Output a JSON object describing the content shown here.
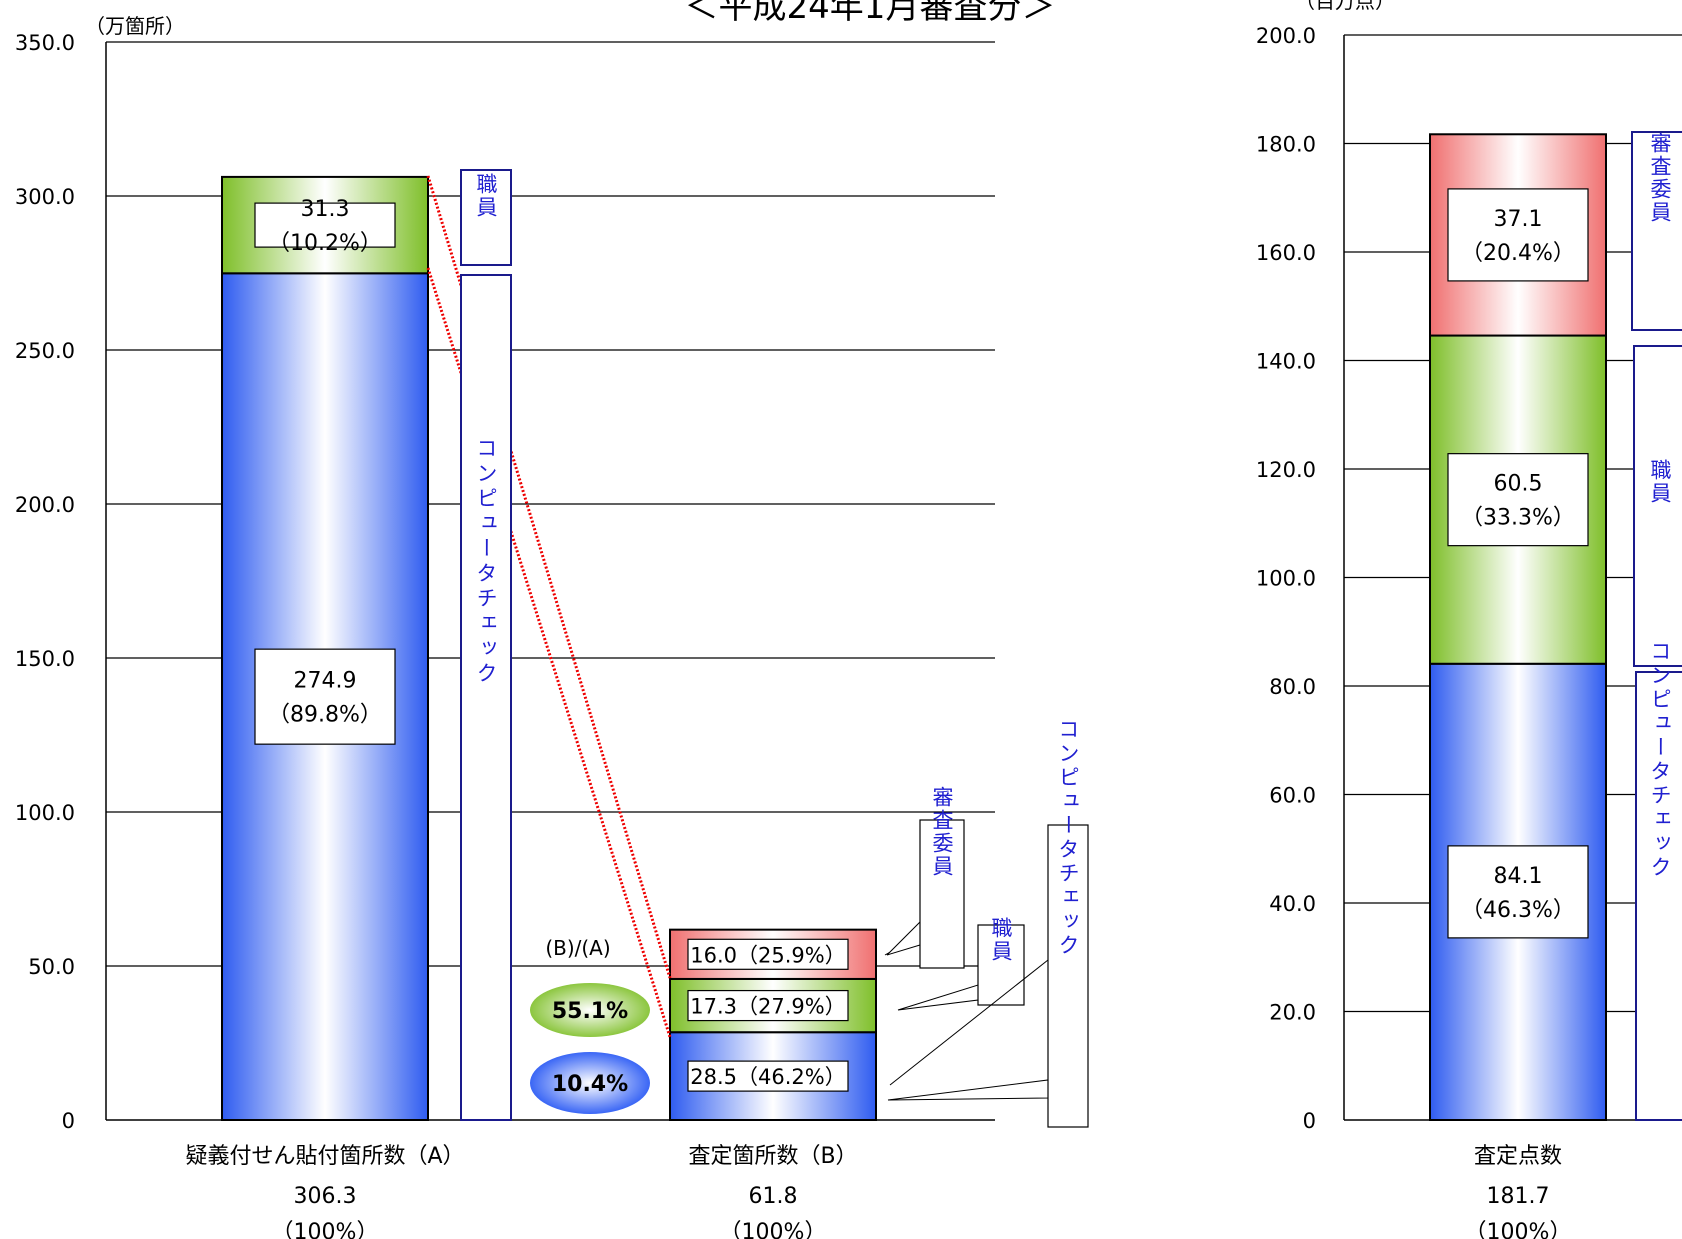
{
  "page": {
    "title": "＜平成24年1月審査分＞"
  },
  "chart_data": [
    {
      "type": "bar",
      "stacked": true,
      "unit_label": "（万箇所）",
      "ylim": [
        0,
        350
      ],
      "yticks": [
        "0",
        "50.0",
        "100.0",
        "150.0",
        "200.0",
        "250.0",
        "300.0",
        "350.0"
      ],
      "grid": true,
      "categories": [
        {
          "label": "疑義付せん貼付箇所数（A）",
          "total": "306.3",
          "pct": "（100%）"
        },
        {
          "label": "査定箇所数（B）",
          "total": "61.8",
          "pct": "（100%）"
        }
      ],
      "series": [
        {
          "name": "コンピュータチェック",
          "color": "#3a66f5",
          "values": [
            274.9,
            28.5
          ],
          "labels": [
            "274.9\n（89.8%）",
            "28.5（46.2%）"
          ]
        },
        {
          "name": "職員",
          "color": "#8cc63f",
          "values": [
            31.3,
            17.3
          ],
          "labels": [
            "31.3\n（10.2%）",
            "17.3（27.9%）"
          ]
        },
        {
          "name": "審査委員",
          "color": "#f08080",
          "values": [
            0,
            16.0
          ],
          "labels": [
            "",
            "16.0（25.9%）"
          ]
        }
      ],
      "ratio": {
        "label": "(B)/(A)",
        "items": [
          {
            "value": "55.1%",
            "color": "#8cc63f"
          },
          {
            "value": "10.4%",
            "color": "#3a66f5"
          }
        ]
      },
      "legend_labels": {
        "staff": "職員",
        "computer": "コンピュータチェック",
        "committee": "審査委員"
      }
    },
    {
      "type": "bar",
      "stacked": true,
      "unit_label": "（百万点）",
      "ylim": [
        0,
        200
      ],
      "yticks": [
        "0",
        "20.0",
        "40.0",
        "60.0",
        "80.0",
        "100.0",
        "120.0",
        "140.0",
        "160.0",
        "180.0",
        "200.0"
      ],
      "grid": true,
      "categories": [
        {
          "label": "査定点数",
          "total": "181.7",
          "pct": "（100%）"
        }
      ],
      "series": [
        {
          "name": "コンピュータチェック",
          "color": "#3a66f5",
          "values": [
            84.1
          ],
          "labels": [
            "84.1\n（46.3%）"
          ]
        },
        {
          "name": "職員",
          "color": "#8cc63f",
          "values": [
            60.5
          ],
          "labels": [
            "60.5\n（33.3%）"
          ]
        },
        {
          "name": "審査委員",
          "color": "#f08080",
          "values": [
            37.1
          ],
          "labels": [
            "37.1\n（20.4%）"
          ]
        }
      ],
      "legend_labels": {
        "committee": "審査委員",
        "staff": "職員",
        "computer": "コンピュータチェック"
      }
    }
  ]
}
